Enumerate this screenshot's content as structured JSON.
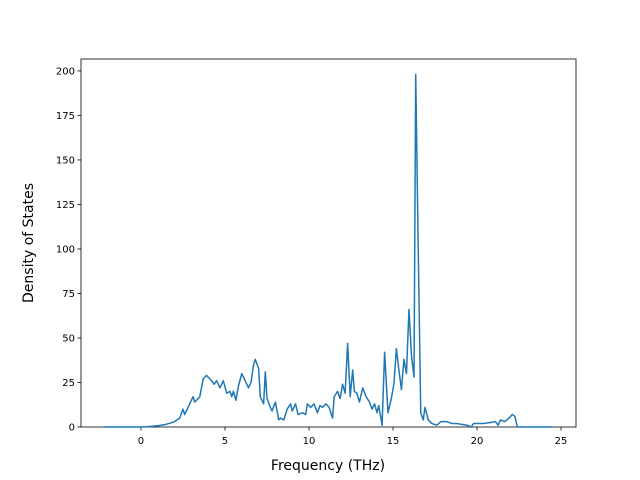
{
  "chart_data": {
    "type": "line",
    "xlabel": "Frequency (THz)",
    "ylabel": "Density of States",
    "xlim": [
      -3.57,
      25.89
    ],
    "ylim": [
      0,
      206.7
    ],
    "xticks": [
      0,
      5,
      10,
      15,
      20,
      25
    ],
    "yticks": [
      0,
      25,
      50,
      75,
      100,
      125,
      150,
      175,
      200
    ],
    "series": [
      {
        "color": "#1f77b4",
        "x": [
          -2.2,
          -1,
          0,
          0.5,
          1,
          1.5,
          2.0,
          2.3,
          2.5,
          2.6,
          2.9,
          3.1,
          3.2,
          3.5,
          3.7,
          3.9,
          4.2,
          4.35,
          4.5,
          4.7,
          4.9,
          5.1,
          5.3,
          5.4,
          5.5,
          5.65,
          5.8,
          6.0,
          6.2,
          6.4,
          6.55,
          6.7,
          6.8,
          7.0,
          7.1,
          7.3,
          7.4,
          7.5,
          7.7,
          7.8,
          8.0,
          8.2,
          8.3,
          8.5,
          8.7,
          8.9,
          9.0,
          9.2,
          9.35,
          9.6,
          9.8,
          9.9,
          10.1,
          10.3,
          10.5,
          10.65,
          10.8,
          11.0,
          11.2,
          11.4,
          11.5,
          11.7,
          11.85,
          12.0,
          12.15,
          12.3,
          12.45,
          12.6,
          12.7,
          12.85,
          13.0,
          13.2,
          13.4,
          13.6,
          13.75,
          13.9,
          14.05,
          14.15,
          14.35,
          14.5,
          14.7,
          14.9,
          15.05,
          15.2,
          15.35,
          15.5,
          15.65,
          15.8,
          15.95,
          16.1,
          16.25,
          16.35,
          16.5,
          16.65,
          16.8,
          16.9,
          17.1,
          17.3,
          17.6,
          17.85,
          18.2,
          18.5,
          18.75,
          19.1,
          19.4,
          19.65,
          19.8,
          20.05,
          20.4,
          20.8,
          21.1,
          21.25,
          21.4,
          21.65,
          21.9,
          22.1,
          22.25,
          22.4,
          23.2,
          24.5
        ],
        "values": [
          0,
          0,
          0,
          0.3,
          0.7,
          1.5,
          3,
          5,
          10,
          7,
          13,
          17,
          14,
          17,
          27,
          29,
          26,
          24,
          26,
          22,
          26,
          19,
          20,
          17,
          20,
          15,
          23,
          30,
          26,
          22,
          25,
          35,
          38,
          33,
          17,
          13,
          31,
          16,
          11,
          9,
          14,
          4,
          5,
          4,
          10,
          13,
          9,
          13,
          7,
          8,
          7,
          13,
          11,
          13,
          8,
          12,
          11,
          13,
          11,
          5,
          17,
          20,
          16,
          24,
          19,
          47,
          17,
          32,
          20,
          19,
          14,
          22,
          17,
          14,
          10,
          13,
          8,
          12,
          1,
          42,
          8,
          16,
          24,
          44,
          32,
          21,
          38,
          30,
          66,
          40,
          28,
          198,
          100,
          8,
          4,
          11,
          4,
          2,
          1,
          3,
          3,
          2,
          2,
          1.5,
          1,
          0,
          2,
          2,
          2,
          2.5,
          3,
          1,
          4,
          3,
          5,
          7,
          6,
          0,
          0,
          0
        ]
      }
    ]
  }
}
